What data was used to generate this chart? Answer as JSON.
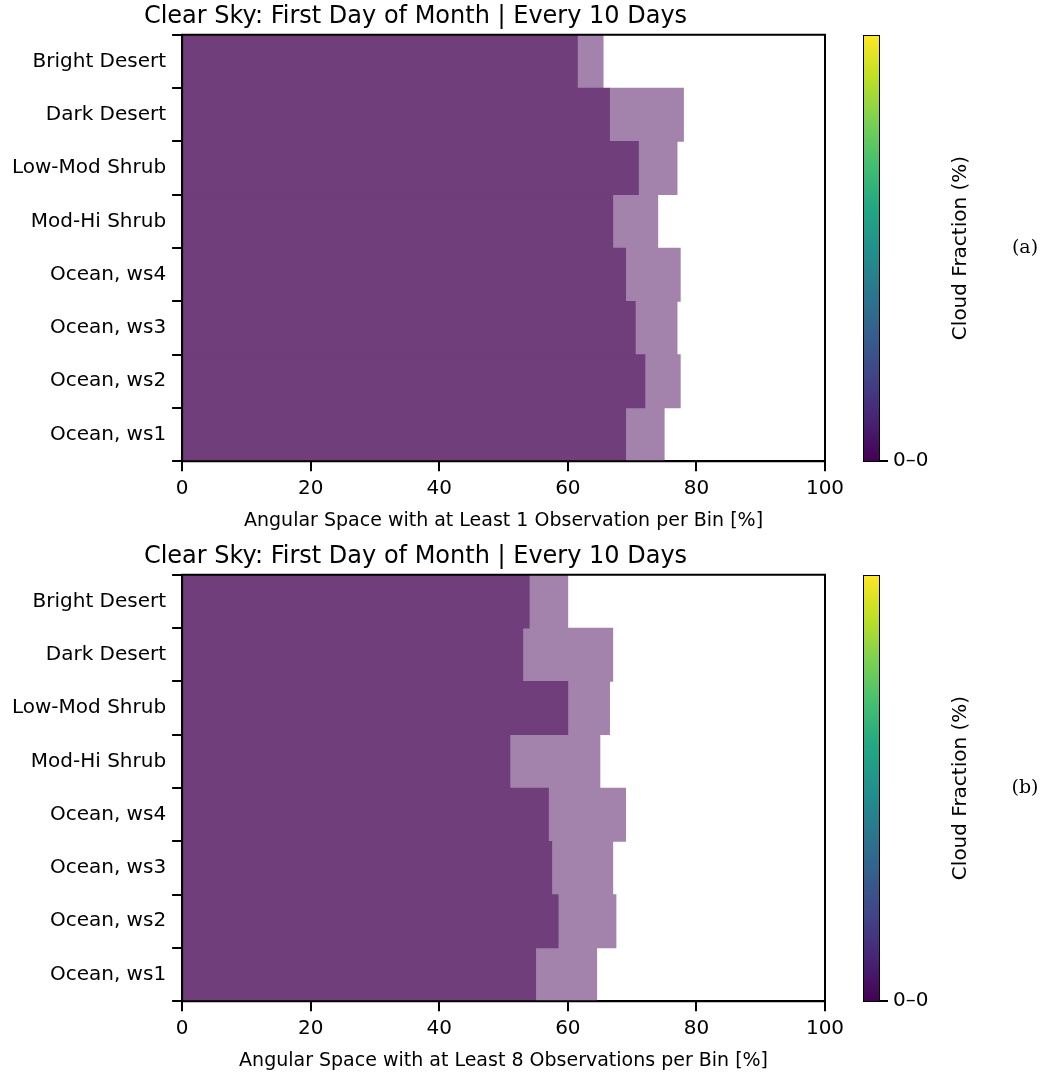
{
  "chart_data": [
    {
      "type": "bar",
      "orientation": "horizontal",
      "stacked": true,
      "title": "Clear Sky: First Day of Month | Every 10 Days",
      "xlabel": "Angular Space with at Least 1 Observation per Bin [%]",
      "clabel": "Cloud Fraction (%)",
      "annotations": [
        "0–0",
        "(a)"
      ],
      "categories": [
        "Bright Desert",
        "Dark Desert",
        "Low-Mod Shrub",
        "Mod-Hi Shrub",
        "Ocean, ws4",
        "Ocean, ws3",
        "Ocean, ws2",
        "Ocean, ws1"
      ],
      "series": [
        {
          "color": "#703e7b",
          "values": [
            61.5,
            66.5,
            71,
            67,
            69,
            70.5,
            72,
            69
          ]
        },
        {
          "color": "#a382ac",
          "values": [
            4,
            11.5,
            6,
            7,
            8.5,
            6.5,
            5.5,
            6
          ]
        }
      ],
      "xlim": [
        0,
        100
      ],
      "xticks": [
        0,
        20,
        40,
        60,
        80,
        100
      ],
      "grid": false
    },
    {
      "type": "bar",
      "orientation": "horizontal",
      "stacked": true,
      "title": "Clear Sky: First Day of Month | Every 10 Days",
      "xlabel": "Angular Space with at Least 8 Observations per Bin [%]",
      "clabel": "Cloud Fraction (%)",
      "annotations": [
        "0–0",
        "(b)"
      ],
      "categories": [
        "Bright Desert",
        "Dark Desert",
        "Low-Mod Shrub",
        "Mod-Hi Shrub",
        "Ocean, ws4",
        "Ocean, ws3",
        "Ocean, ws2",
        "Ocean, ws1"
      ],
      "series": [
        {
          "color": "#703e7b",
          "values": [
            54,
            53,
            60,
            51,
            57,
            57.5,
            58.5,
            55
          ]
        },
        {
          "color": "#a382ac",
          "values": [
            6,
            14,
            6.5,
            14,
            12,
            9.5,
            9,
            9.5
          ]
        }
      ],
      "xlim": [
        0,
        100
      ],
      "xticks": [
        0,
        20,
        40,
        60,
        80,
        100
      ],
      "grid": false
    }
  ]
}
